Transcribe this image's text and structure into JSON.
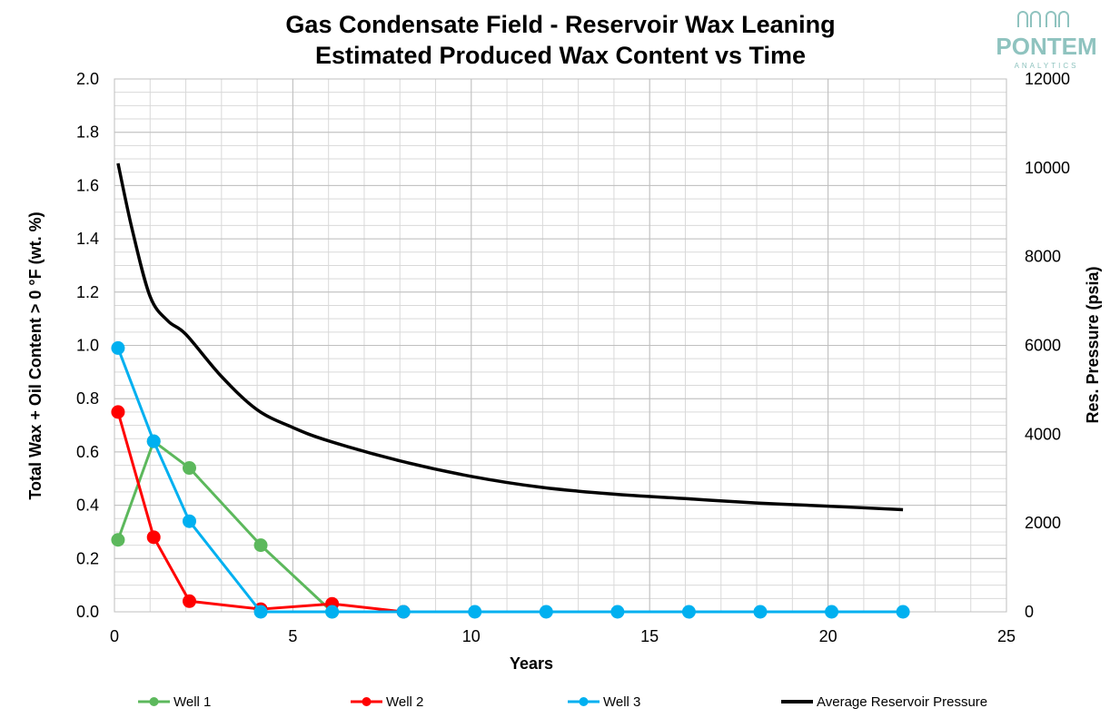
{
  "logo": {
    "name": "PONTEM",
    "tagline": "ANALYTICS",
    "color": "#8fc3bf"
  },
  "chart_data": {
    "type": "line",
    "title": [
      "Gas Condensate Field - Reservoir Wax Leaning",
      "Estimated Produced Wax Content vs Time"
    ],
    "xlabel": "Years",
    "ylabel": "Total Wax + Oil Content > 0 °F (wt. %)",
    "y2label": "Res. Pressure (psia)",
    "xlim": [
      0,
      25
    ],
    "ylim": [
      0,
      2.0
    ],
    "y2lim": [
      0,
      12000
    ],
    "xticks": [
      "0",
      "5",
      "10",
      "15",
      "20",
      "25"
    ],
    "yticks": [
      "0.0",
      "0.2",
      "0.4",
      "0.6",
      "0.8",
      "1.0",
      "1.2",
      "1.4",
      "1.6",
      "1.8",
      "2.0"
    ],
    "y2ticks": [
      "0",
      "2000",
      "4000",
      "6000",
      "8000",
      "10000",
      "12000"
    ],
    "grid": true,
    "legend_position": "bottom",
    "series": [
      {
        "name": "Well 1",
        "color": "#5cb85c",
        "axis": "left",
        "marker": true,
        "x": [
          0.1,
          1.1,
          2.1,
          4.1,
          6.1
        ],
        "y": [
          0.27,
          0.64,
          0.54,
          0.25,
          0.0
        ]
      },
      {
        "name": "Well 2",
        "color": "#ff0000",
        "axis": "left",
        "marker": true,
        "x": [
          0.1,
          1.1,
          2.1,
          4.1,
          6.1,
          8.1
        ],
        "y": [
          0.75,
          0.28,
          0.04,
          0.01,
          0.03,
          0.0
        ]
      },
      {
        "name": "Well 3",
        "color": "#00b0f0",
        "axis": "left",
        "marker": true,
        "x": [
          0.1,
          1.1,
          2.1,
          4.1,
          6.1,
          8.1,
          10.1,
          12.1,
          14.1,
          16.1,
          18.1,
          20.1,
          22.1
        ],
        "y": [
          0.99,
          0.64,
          0.34,
          0.0,
          0.0,
          0.0,
          0.0,
          0.0,
          0.0,
          0.0,
          0.0,
          0.0,
          0.0
        ]
      },
      {
        "name": "Average Reservoir Pressure",
        "color": "#000000",
        "axis": "right",
        "marker": false,
        "x": [
          0.1,
          0.5,
          1.0,
          1.5,
          2.0,
          3.0,
          4.0,
          5.0,
          6.0,
          8.0,
          10.0,
          12.0,
          14.0,
          16.0,
          18.0,
          20.0,
          22.1
        ],
        "y": [
          10100,
          8600,
          7100,
          6550,
          6250,
          5300,
          4550,
          4150,
          3850,
          3400,
          3050,
          2800,
          2650,
          2550,
          2450,
          2380,
          2300
        ]
      }
    ]
  }
}
